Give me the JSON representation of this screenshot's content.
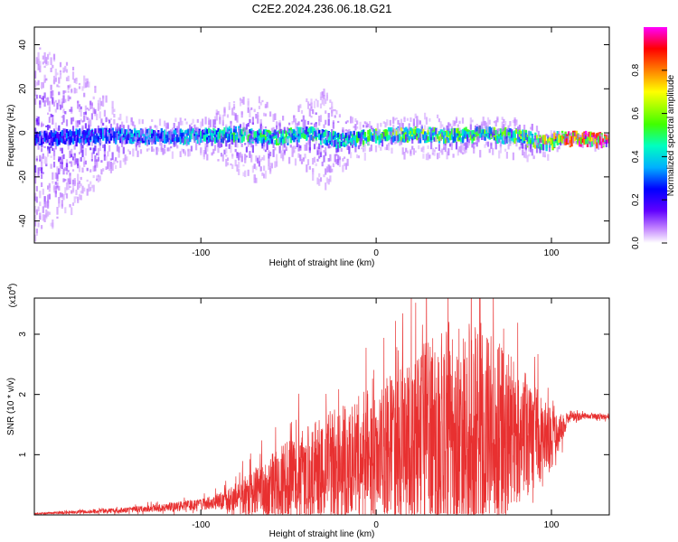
{
  "title": "C2E2.2024.236.06.18.G21",
  "top_panel": {
    "xlabel": "Height of straight line (km)",
    "ylabel": "Frequency (Hz)",
    "xticks": [
      -100,
      0,
      100
    ],
    "yticks": [
      40,
      20,
      0,
      -20,
      -40
    ],
    "colorbar": {
      "label": "Normalized spectral amplitude",
      "ticks": [
        "0.0",
        "0.2",
        "0.4",
        "0.6",
        "0.8"
      ]
    }
  },
  "bottom_panel": {
    "xlabel": "Height of straight line (km)",
    "ylabel": "SNR (10 * v/v)",
    "exponent_label": "(x10",
    "exponent_power": "4",
    "exponent_close": ")",
    "xticks": [
      -100,
      0,
      100
    ],
    "yticks": [
      1,
      2,
      3
    ]
  },
  "colors": {
    "snr_line": "#e83030",
    "spectrogram_base": "#7a3cff"
  },
  "chart_data": [
    {
      "type": "heatmap",
      "title": "C2E2.2024.236.06.18.G21",
      "xlabel": "Height of straight line (km)",
      "ylabel": "Frequency (Hz)",
      "xlim": [
        -195,
        133
      ],
      "ylim": [
        -50,
        48
      ],
      "colorbar_range": [
        0,
        1
      ],
      "colormap": [
        "#ffffff",
        "#c080ff",
        "#6000ff",
        "#0000ff",
        "#00b0ff",
        "#00ffc0",
        "#40ff00",
        "#ffff00",
        "#ff8000",
        "#ff0000",
        "#ff00ff"
      ],
      "ridge_frequency_hz": [
        [
          -190,
          -2
        ],
        [
          -160,
          -1
        ],
        [
          -130,
          -1
        ],
        [
          -100,
          -1
        ],
        [
          -80,
          0
        ],
        [
          -60,
          -2
        ],
        [
          -40,
          0
        ],
        [
          -20,
          -3
        ],
        [
          0,
          -1
        ],
        [
          20,
          0
        ],
        [
          40,
          -1
        ],
        [
          60,
          0
        ],
        [
          80,
          -1
        ],
        [
          95,
          -4
        ],
        [
          105,
          -2
        ],
        [
          115,
          -2
        ],
        [
          130,
          -3
        ]
      ],
      "ridge_amplitude": [
        [
          -190,
          0.35
        ],
        [
          -160,
          0.4
        ],
        [
          -130,
          0.45
        ],
        [
          -100,
          0.5
        ],
        [
          -80,
          0.55
        ],
        [
          -60,
          0.55
        ],
        [
          -40,
          0.55
        ],
        [
          -20,
          0.5
        ],
        [
          0,
          0.6
        ],
        [
          20,
          0.65
        ],
        [
          40,
          0.6
        ],
        [
          60,
          0.6
        ],
        [
          80,
          0.6
        ],
        [
          95,
          0.7
        ],
        [
          105,
          0.85
        ],
        [
          115,
          0.97
        ],
        [
          130,
          0.95
        ]
      ],
      "ridge_spread_hz": [
        [
          -195,
          45
        ],
        [
          -170,
          30
        ],
        [
          -140,
          8
        ],
        [
          -100,
          8
        ],
        [
          -80,
          16
        ],
        [
          -70,
          20
        ],
        [
          -50,
          10
        ],
        [
          -30,
          22
        ],
        [
          -20,
          12
        ],
        [
          0,
          6
        ],
        [
          20,
          10
        ],
        [
          60,
          8
        ],
        [
          90,
          8
        ],
        [
          110,
          3
        ],
        [
          133,
          3
        ]
      ]
    },
    {
      "type": "line",
      "title": "",
      "xlabel": "Height of straight line (km)",
      "ylabel": "SNR (10 * v/v)",
      "xlim": [
        -195,
        133
      ],
      "ylim": [
        0,
        36000
      ],
      "series": [
        {
          "x": [
            -195,
            -150,
            -120,
            -100,
            -90,
            -80,
            -70,
            -60,
            -50,
            -40,
            -30,
            -20,
            -10,
            0,
            10,
            20,
            30,
            40,
            50,
            60,
            70,
            80,
            90,
            100,
            110,
            120,
            133
          ],
          "baseline": [
            200,
            700,
            1200,
            1800,
            2300,
            2900,
            3600,
            4500,
            5500,
            6500,
            7500,
            8500,
            9500,
            10500,
            11500,
            12500,
            13200,
            13600,
            14000,
            14200,
            14000,
            13500,
            13000,
            12500,
            16000,
            16500,
            16200
          ],
          "amplitude": [
            100,
            400,
            700,
            1000,
            1300,
            2500,
            4000,
            5500,
            7000,
            8000,
            9000,
            10000,
            10500,
            11000,
            12000,
            14000,
            16000,
            18000,
            19000,
            18000,
            15000,
            12000,
            9000,
            5000,
            800,
            500,
            400
          ]
        }
      ]
    }
  ]
}
